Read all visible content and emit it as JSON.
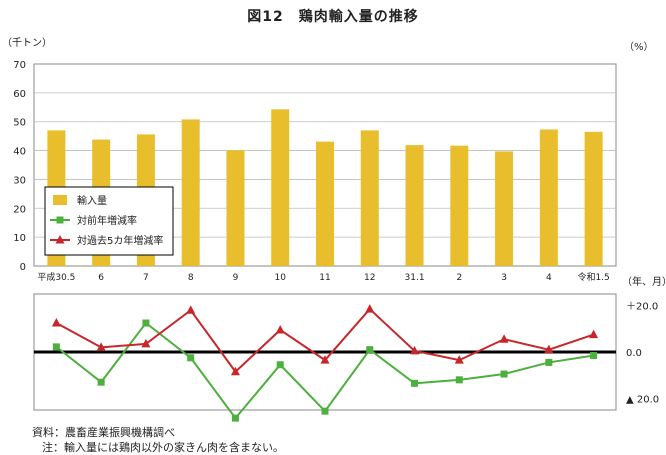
{
  "title": "図12　鶏肉輸入量の推移",
  "source_text": "資料：農畜産業振興機構調べ",
  "note_text": "注：輸入量には鶏肉以外の家きん肉を含まない。",
  "chart_data": [
    {
      "type": "bar",
      "ylabel": "（千トン）",
      "xlabel": "（年、月）",
      "ylim": [
        0,
        70
      ],
      "yticks": [
        "0",
        "10",
        "20",
        "30",
        "40",
        "50",
        "60",
        "70"
      ],
      "categories": [
        "平成30.5",
        "6",
        "7",
        "8",
        "9",
        "10",
        "11",
        "12",
        "31.1",
        "2",
        "3",
        "4",
        "令和1.5"
      ],
      "series": [
        {
          "name": "輸入量",
          "color": "#E9BE2C",
          "values": [
            47.0,
            43.8,
            45.6,
            50.8,
            40.1,
            54.3,
            43.1,
            47.0,
            41.9,
            41.7,
            39.7,
            47.3,
            46.5
          ]
        }
      ],
      "grid": true
    },
    {
      "type": "line",
      "ylabel": "（%）",
      "ylim": [
        -25,
        25
      ],
      "yticks": [
        "＋20.0",
        "0.0",
        "▲ 20.0"
      ],
      "ytick_values": [
        20,
        0,
        -20
      ],
      "categories": [
        "平成30.5",
        "6",
        "7",
        "8",
        "9",
        "10",
        "11",
        "12",
        "31.1",
        "2",
        "3",
        "4",
        "令和1.5"
      ],
      "series": [
        {
          "name": "対前年増減率",
          "color": "#4DAF3D",
          "marker": "square",
          "values": [
            2.2,
            -13.0,
            12.5,
            -2.5,
            -28.5,
            -5.5,
            -25.5,
            1.0,
            -13.5,
            -12.0,
            -9.5,
            -4.5,
            -1.5
          ]
        },
        {
          "name": "対過去5カ年増減率",
          "color": "#C8262B",
          "marker": "triangle",
          "values": [
            12.5,
            2.0,
            3.5,
            18.0,
            -8.5,
            9.5,
            -3.5,
            18.5,
            0.5,
            -3.5,
            5.5,
            1.0,
            7.5
          ]
        }
      ],
      "grid": false
    }
  ],
  "legend": {
    "placement": "lower-left inside bar panel",
    "items": [
      {
        "label": "輸入量",
        "type": "bar",
        "color": "#E9BE2C"
      },
      {
        "label": "対前年増減率",
        "type": "line-square",
        "color": "#4DAF3D"
      },
      {
        "label": "対過去5カ年増減率",
        "type": "line-triangle",
        "color": "#C8262B"
      }
    ]
  }
}
